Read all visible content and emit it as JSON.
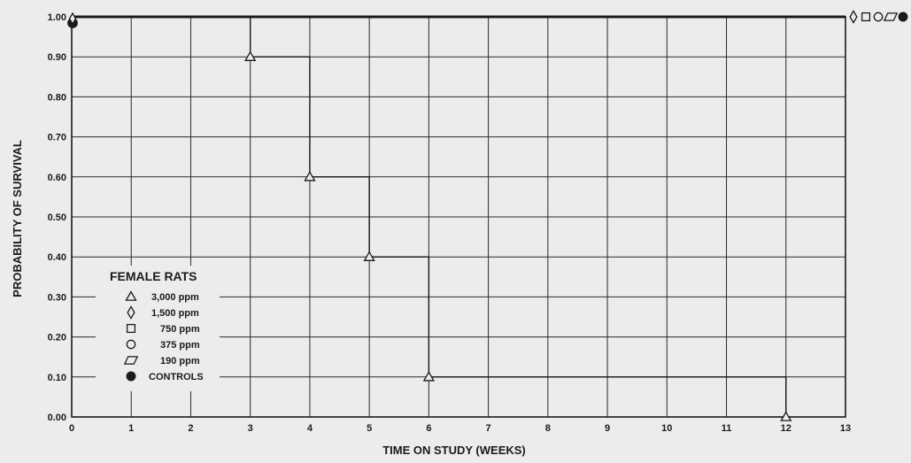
{
  "chart_data": {
    "type": "line",
    "step": true,
    "xlabel": "TIME ON STUDY (WEEKS)",
    "ylabel": "PROBABILITY OF SURVIVAL",
    "xlim": [
      0,
      13
    ],
    "ylim": [
      0,
      1.0
    ],
    "x_ticks": [
      "0",
      "1",
      "2",
      "3",
      "4",
      "5",
      "6",
      "7",
      "8",
      "9",
      "10",
      "11",
      "12",
      "13"
    ],
    "y_ticks": [
      "0.00",
      "0.10",
      "0.20",
      "0.30",
      "0.40",
      "0.50",
      "0.60",
      "0.70",
      "0.80",
      "0.90",
      "1.00"
    ],
    "grid": true,
    "legend": {
      "title": "FEMALE RATS",
      "placement": "lower-left",
      "entries": [
        {
          "marker": "triangle",
          "label": "3,000 ppm"
        },
        {
          "marker": "diamond",
          "label": "1,500 ppm"
        },
        {
          "marker": "square",
          "label": "750 ppm"
        },
        {
          "marker": "circle",
          "label": "375 ppm"
        },
        {
          "marker": "parallelogram",
          "label": "190 ppm"
        },
        {
          "marker": "filled-circle",
          "label": "CONTROLS"
        }
      ]
    },
    "series": [
      {
        "name": "3,000 ppm",
        "marker": "triangle",
        "x": [
          0,
          3,
          4,
          5,
          6,
          12
        ],
        "y": [
          1.0,
          0.9,
          0.6,
          0.4,
          0.1,
          0.0
        ]
      },
      {
        "name": "1,500 ppm",
        "marker": "diamond",
        "x": [
          0,
          13
        ],
        "y": [
          1.0,
          1.0
        ]
      },
      {
        "name": "750 ppm",
        "marker": "square",
        "x": [
          0,
          13
        ],
        "y": [
          1.0,
          1.0
        ]
      },
      {
        "name": "375 ppm",
        "marker": "circle",
        "x": [
          0,
          13
        ],
        "y": [
          1.0,
          1.0
        ]
      },
      {
        "name": "190 ppm",
        "marker": "parallelogram",
        "x": [
          0,
          13
        ],
        "y": [
          1.0,
          1.0
        ]
      },
      {
        "name": "CONTROLS",
        "marker": "filled-circle",
        "x": [
          0,
          13
        ],
        "y": [
          1.0,
          1.0
        ]
      }
    ],
    "colors": {
      "background": "#ececec",
      "ink": "#1a1a1a",
      "grid": "#2a2a2a"
    }
  }
}
